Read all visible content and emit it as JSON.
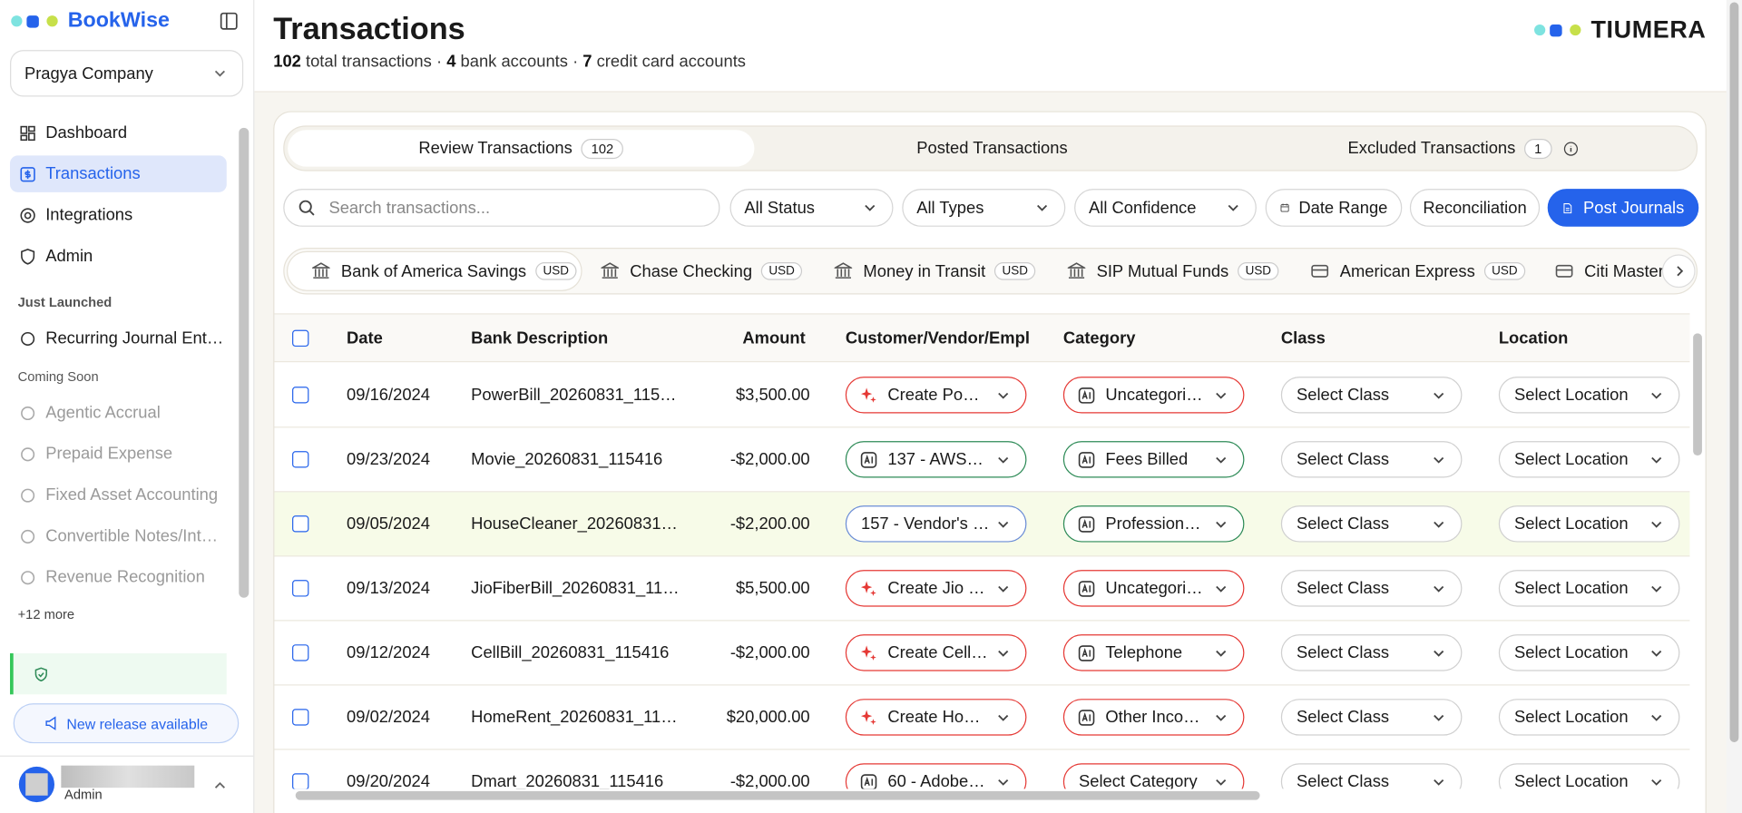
{
  "sidebar": {
    "brand": "BookWise",
    "company": "Pragya Company",
    "nav": [
      "Dashboard",
      "Transactions",
      "Integrations",
      "Admin"
    ],
    "sections": [
      {
        "title": "Just Launched",
        "items": [
          "Recurring Journal Ent…"
        ]
      },
      {
        "title": "Coming Soon",
        "items": [
          "Agentic Accrual",
          "Prepaid Expense",
          "Fixed Asset Accounting",
          "Convertible Notes/Int…",
          "Revenue Recognition"
        ]
      }
    ],
    "more": "+12 more",
    "release": "New release available",
    "user_role": "Admin"
  },
  "header": {
    "title": "Transactions",
    "separator": "·",
    "stats": [
      {
        "count": "102",
        "label": "total transactions"
      },
      {
        "count": "4",
        "label": "bank accounts"
      },
      {
        "count": "7",
        "label": "credit card accounts"
      }
    ],
    "logo": "TIUMERA"
  },
  "tabs": [
    {
      "label": "Review Transactions",
      "count": "102"
    },
    {
      "label": "Posted Transactions"
    },
    {
      "label": "Excluded Transactions",
      "count": "1"
    }
  ],
  "filters": {
    "search_placeholder": "Search transactions...",
    "dropdowns": [
      "All Status",
      "All Types",
      "All Confidence"
    ],
    "date_range": "Date Range",
    "reconciliation": "Reconciliation",
    "post_journals": "Post Journals"
  },
  "accounts": [
    {
      "name": "Bank of America Savings",
      "currency": "USD"
    },
    {
      "name": "Chase Checking",
      "currency": "USD"
    },
    {
      "name": "Money in Transit",
      "currency": "USD"
    },
    {
      "name": "SIP Mutual Funds",
      "currency": "USD"
    },
    {
      "name": "American Express",
      "currency": "USD"
    },
    {
      "name": "Citi Master"
    }
  ],
  "table": {
    "columns": [
      "Date",
      "Bank Description",
      "Amount",
      "Customer/Vendor/Empl",
      "Category",
      "Class",
      "Location"
    ],
    "rows": [
      {
        "date": "09/16/2024",
        "description": "PowerBill_20260831_115…",
        "amount": "$3,500.00",
        "vendor": {
          "text": "Create Po…",
          "color": "#e53935",
          "icon": "sparkle"
        },
        "category": {
          "text": "Uncategori…",
          "color": "#e53935",
          "icon": "ai"
        },
        "class": "Select Class",
        "location": "Select Location"
      },
      {
        "date": "09/23/2024",
        "description": "Movie_20260831_115416",
        "amount": "-$2,000.00",
        "vendor": {
          "text": "137 - AWS…",
          "color": "#2e8b57",
          "icon": "ai"
        },
        "category": {
          "text": "Fees Billed",
          "color": "#2e8b57",
          "icon": "ai"
        },
        "class": "Select Class",
        "location": "Select Location"
      },
      {
        "date": "09/05/2024",
        "description": "HouseCleaner_20260831…",
        "amount": "-$2,200.00",
        "vendor": {
          "text": "157 - Vendor's …",
          "color": "#6b8dd6"
        },
        "category": {
          "text": "Profession…",
          "color": "#2e8b57",
          "icon": "ai"
        },
        "class": "Select Class",
        "location": "Select Location"
      },
      {
        "date": "09/13/2024",
        "description": "JioFiberBill_20260831_11…",
        "amount": "$5,500.00",
        "vendor": {
          "text": "Create Jio …",
          "color": "#e53935",
          "icon": "sparkle"
        },
        "category": {
          "text": "Uncategori…",
          "color": "#e53935",
          "icon": "ai"
        },
        "class": "Select Class",
        "location": "Select Location"
      },
      {
        "date": "09/12/2024",
        "description": "CellBill_20260831_115416",
        "amount": "-$2,000.00",
        "vendor": {
          "text": "Create Cell…",
          "color": "#e53935",
          "icon": "sparkle"
        },
        "category": {
          "text": "Telephone",
          "color": "#e53935",
          "icon": "ai"
        },
        "class": "Select Class",
        "location": "Select Location"
      },
      {
        "date": "09/02/2024",
        "description": "HomeRent_20260831_11…",
        "amount": "$20,000.00",
        "vendor": {
          "text": "Create Ho…",
          "color": "#e53935",
          "icon": "sparkle"
        },
        "category": {
          "text": "Other Inco…",
          "color": "#e53935",
          "icon": "ai"
        },
        "class": "Select Class",
        "location": "Select Location"
      },
      {
        "date": "09/20/2024",
        "description": "Dmart_20260831_115416",
        "amount": "-$2,000.00",
        "vendor": {
          "text": "60 - Adobe…",
          "color": "#e53935",
          "icon": "ai"
        },
        "category": {
          "text": "Select Category",
          "color": "#e53935"
        },
        "class": "Select Class",
        "location": "Select Location"
      }
    ]
  }
}
